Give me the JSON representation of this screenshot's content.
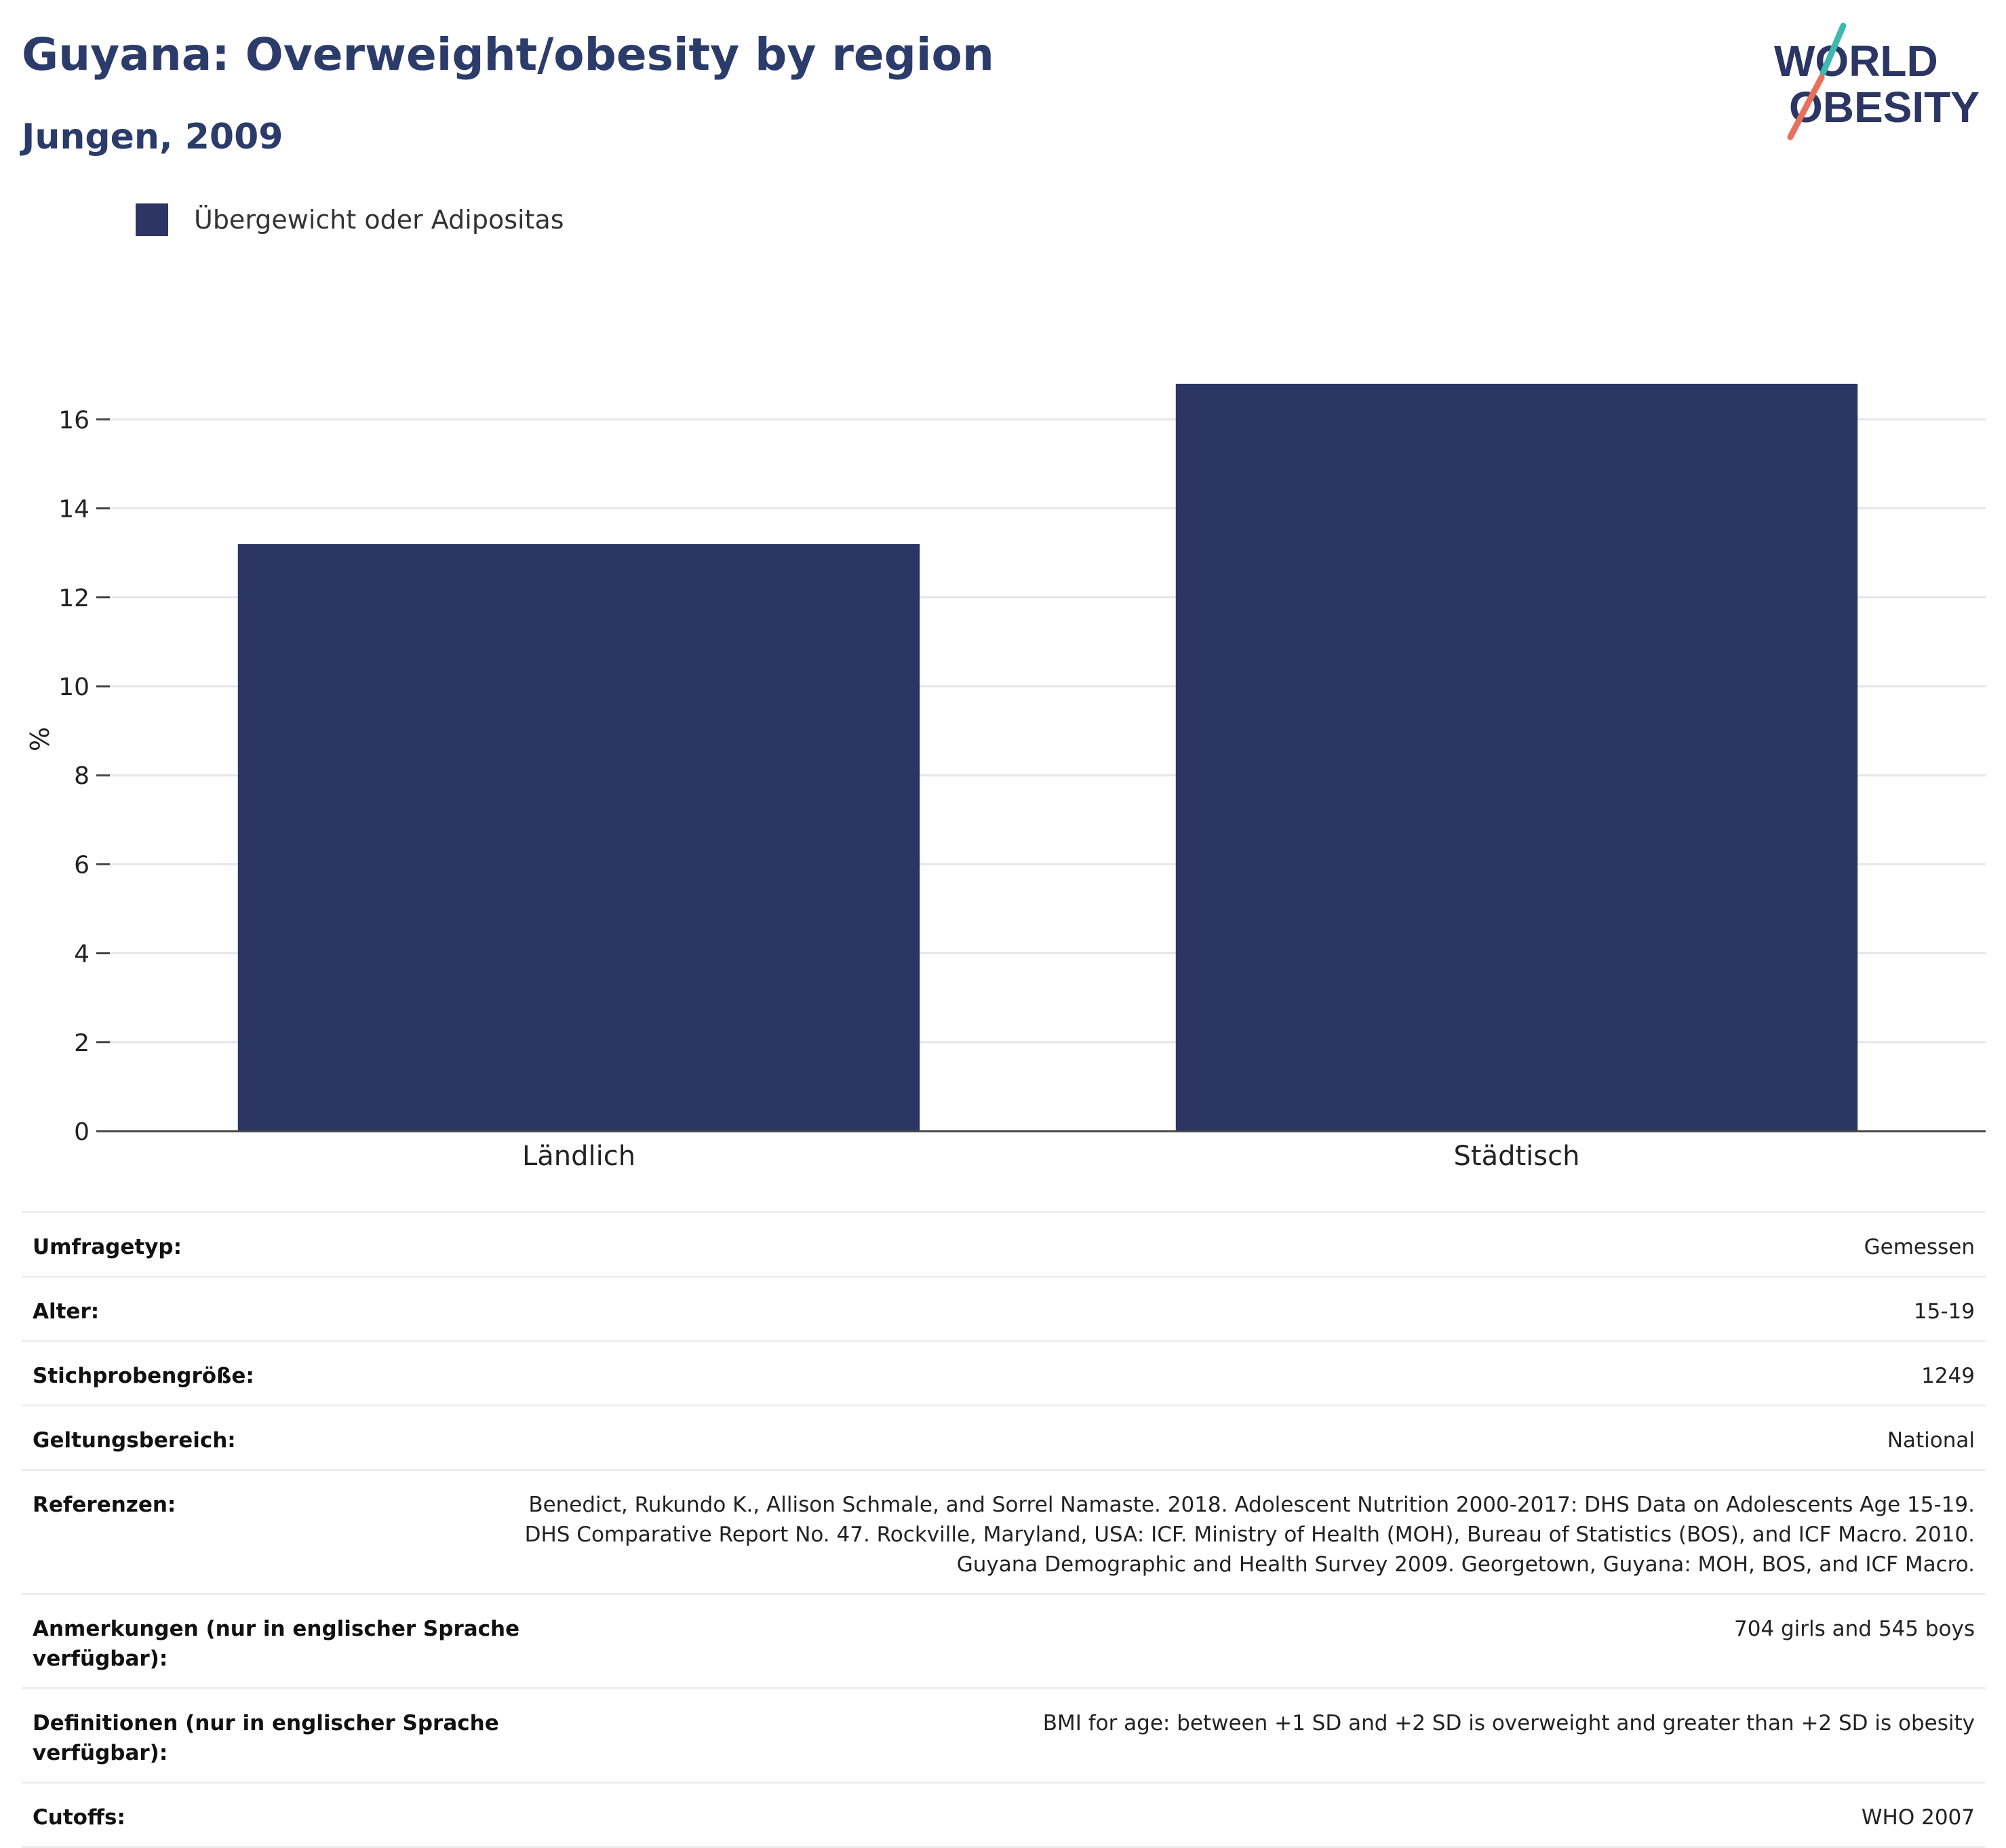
{
  "header": {
    "title": "Guyana: Overweight/obesity by region",
    "subtitle": "Jungen, 2009"
  },
  "logo": {
    "line1": "WORLD",
    "line2": "OBESITY"
  },
  "legend": {
    "label": "Übergewicht oder Adipositas",
    "color": "#2b3664"
  },
  "chart_data": {
    "type": "bar",
    "categories": [
      "Ländlich",
      "Städtisch"
    ],
    "values": [
      13.2,
      16.8
    ],
    "ylabel": "%",
    "ylim": [
      0,
      17.5
    ],
    "yticks": [
      0,
      2,
      4,
      6,
      8,
      10,
      12,
      14,
      16
    ],
    "grid": true,
    "legend_position": "top-left",
    "bar_color": "#2b3664"
  },
  "meta": [
    {
      "key": "Umfragetyp:",
      "value": "Gemessen"
    },
    {
      "key": "Alter:",
      "value": "15-19"
    },
    {
      "key": "Stichprobengröße:",
      "value": "1249"
    },
    {
      "key": "Geltungsbereich:",
      "value": "National"
    },
    {
      "key": "Referenzen:",
      "value": "Benedict, Rukundo K., Allison Schmale, and Sorrel Namaste. 2018. Adolescent Nutrition 2000-2017: DHS Data on Adolescents Age 15-19. DHS Comparative Report No. 47. Rockville, Maryland, USA: ICF. Ministry of Health (MOH), Bureau of Statistics (BOS), and ICF Macro. 2010. Guyana Demographic and Health Survey 2009. Georgetown, Guyana: MOH, BOS, and ICF Macro."
    },
    {
      "key": "Anmerkungen (nur in englischer Sprache verfügbar):",
      "value": "704 girls and 545 boys"
    },
    {
      "key": "Definitionen (nur in englischer Sprache verfügbar):",
      "value": "BMI for age: between +1 SD and +2 SD is overweight and greater than +2 SD is obesity"
    },
    {
      "key": "Cutoffs:",
      "value": "WHO 2007"
    }
  ]
}
